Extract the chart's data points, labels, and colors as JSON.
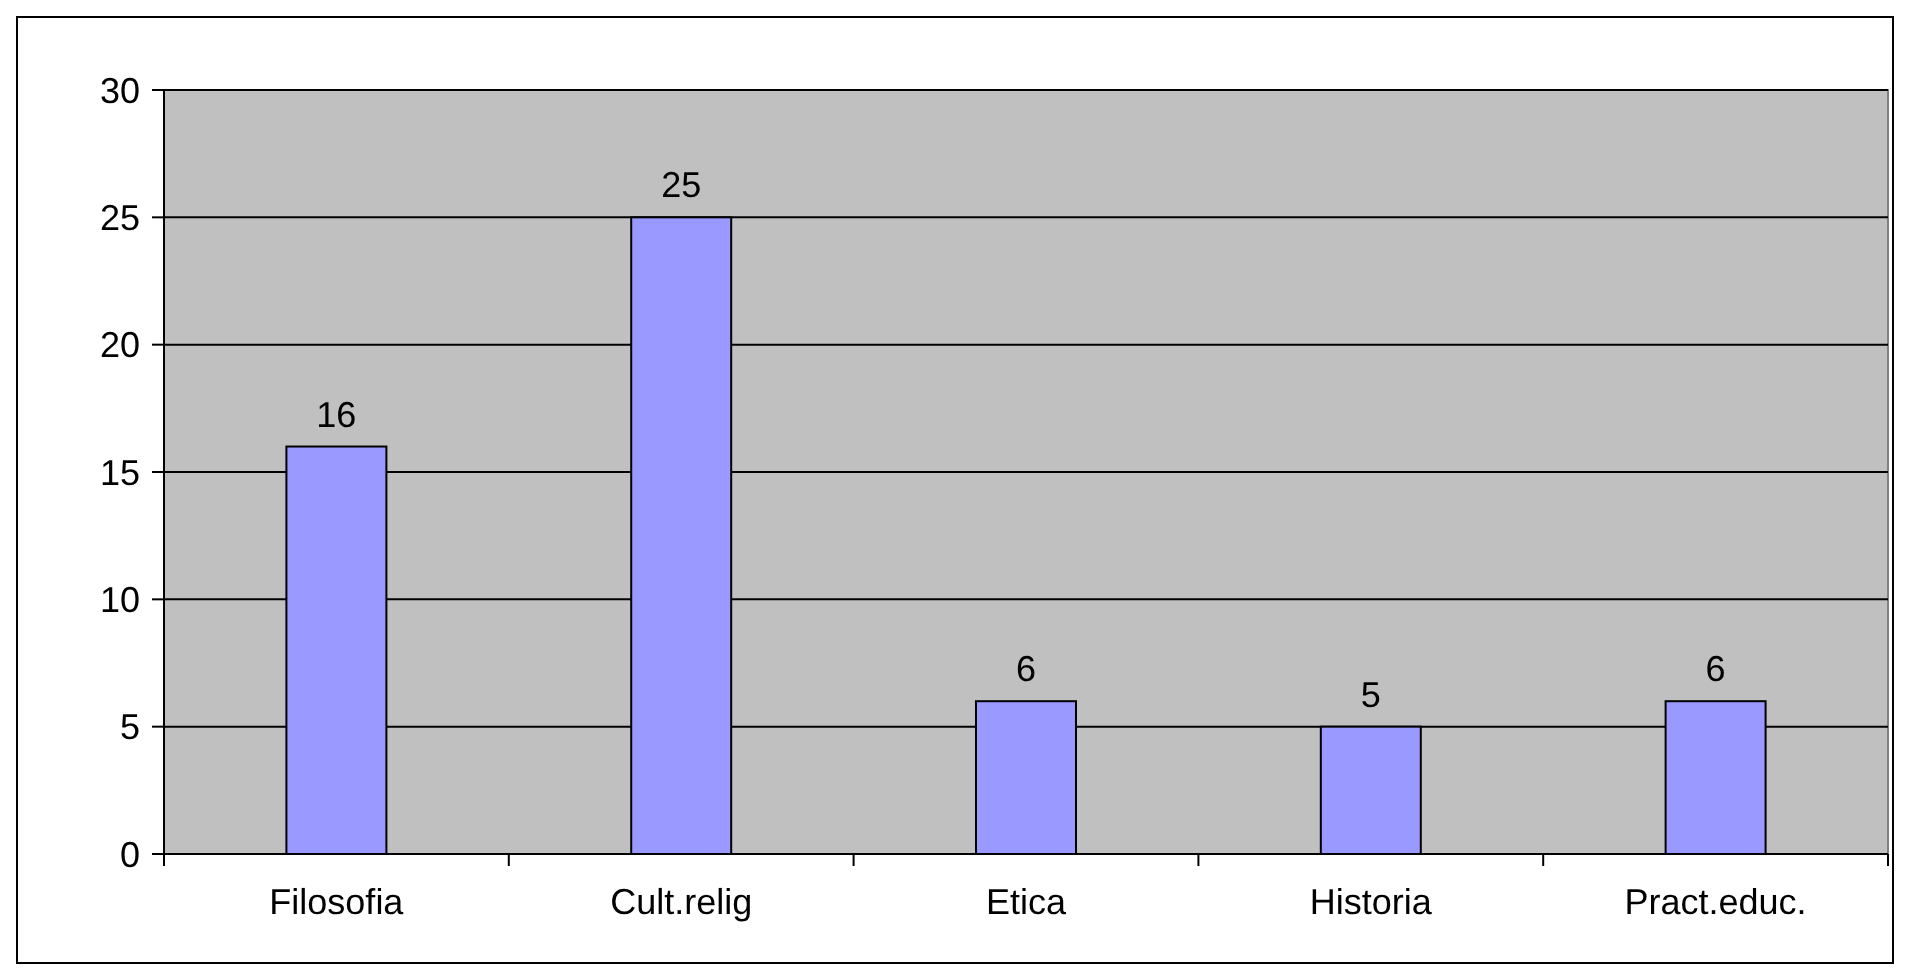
{
  "chart_data": {
    "type": "bar",
    "categories": [
      "Filosofia",
      "Cult.relig",
      "Etica",
      "Historia",
      "Pract.educ."
    ],
    "values": [
      16,
      25,
      6,
      5,
      6
    ],
    "color": "#9999ff",
    "ylim": [
      0,
      30
    ],
    "yticks": [
      0,
      5,
      10,
      15,
      20,
      25,
      30
    ],
    "grid": "y",
    "data_labels": true
  }
}
